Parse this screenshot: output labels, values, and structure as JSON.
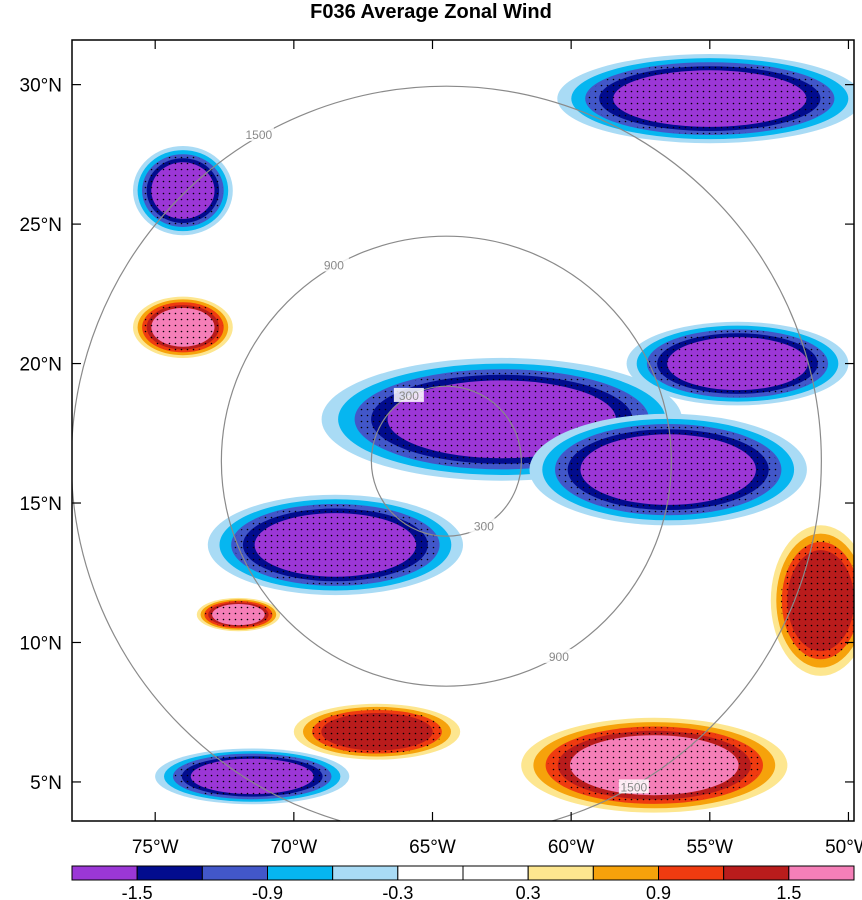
{
  "chart_data": {
    "type": "heatmap",
    "title": "F036 Average Zonal Wind",
    "x_ticks": [
      "75°W",
      "70°W",
      "65°W",
      "60°W",
      "55°W",
      "50°W"
    ],
    "y_ticks": [
      "30°N",
      "25°N",
      "20°N",
      "15°N",
      "10°N",
      "5°N"
    ],
    "xlim": [
      -78.0,
      -49.8
    ],
    "ylim": [
      3.6,
      31.6
    ],
    "colorbar": {
      "labels": [
        "-1.5",
        "-0.9",
        "-0.3",
        "0.3",
        "0.9",
        "1.5"
      ],
      "levels": [
        -1.5,
        -1.2,
        -0.9,
        -0.6,
        -0.3,
        0,
        0.3,
        0.6,
        0.9,
        1.2,
        1.5
      ],
      "colors": [
        "#9b37d6",
        "#020c8e",
        "#4257c9",
        "#06b6f0",
        "#a9dbf5",
        "#ffffff",
        "#ffffff",
        "#fde68f",
        "#f6a20b",
        "#ef3b10",
        "#b91c1c",
        "#f57fb8"
      ]
    },
    "range_rings": {
      "center": [
        -64.5,
        16.5
      ],
      "labels": [
        "300",
        "900",
        "1500"
      ]
    },
    "regions": [
      {
        "value": -1.8,
        "lon": -62.5,
        "lat": 18.0,
        "rx": 6.5,
        "ry": 2.2
      },
      {
        "value": -1.8,
        "lon": -56.5,
        "lat": 16.2,
        "rx": 5.0,
        "ry": 2.0
      },
      {
        "value": -1.8,
        "lon": -54.0,
        "lat": 20.0,
        "rx": 4.0,
        "ry": 1.5
      },
      {
        "value": -1.8,
        "lon": -68.5,
        "lat": 13.5,
        "rx": 4.6,
        "ry": 1.8
      },
      {
        "value": -1.8,
        "lon": -74.0,
        "lat": 26.2,
        "rx": 1.8,
        "ry": 1.6
      },
      {
        "value": -1.8,
        "lon": -55.0,
        "lat": 29.5,
        "rx": 5.5,
        "ry": 1.6
      },
      {
        "value": -1.8,
        "lon": -71.5,
        "lat": 5.2,
        "rx": 3.5,
        "ry": 1.0
      },
      {
        "value": 1.8,
        "lon": -74.0,
        "lat": 21.3,
        "rx": 1.8,
        "ry": 1.1
      },
      {
        "value": 1.8,
        "lon": -57.0,
        "lat": 5.6,
        "rx": 4.8,
        "ry": 1.7
      },
      {
        "value": 1.8,
        "lon": -72.0,
        "lat": 11.0,
        "rx": 1.5,
        "ry": 0.6
      },
      {
        "value": 1.2,
        "lon": -51.0,
        "lat": 11.5,
        "rx": 1.8,
        "ry": 2.7
      },
      {
        "value": 1.2,
        "lon": -67.0,
        "lat": 6.8,
        "rx": 3.0,
        "ry": 1.0
      }
    ]
  }
}
